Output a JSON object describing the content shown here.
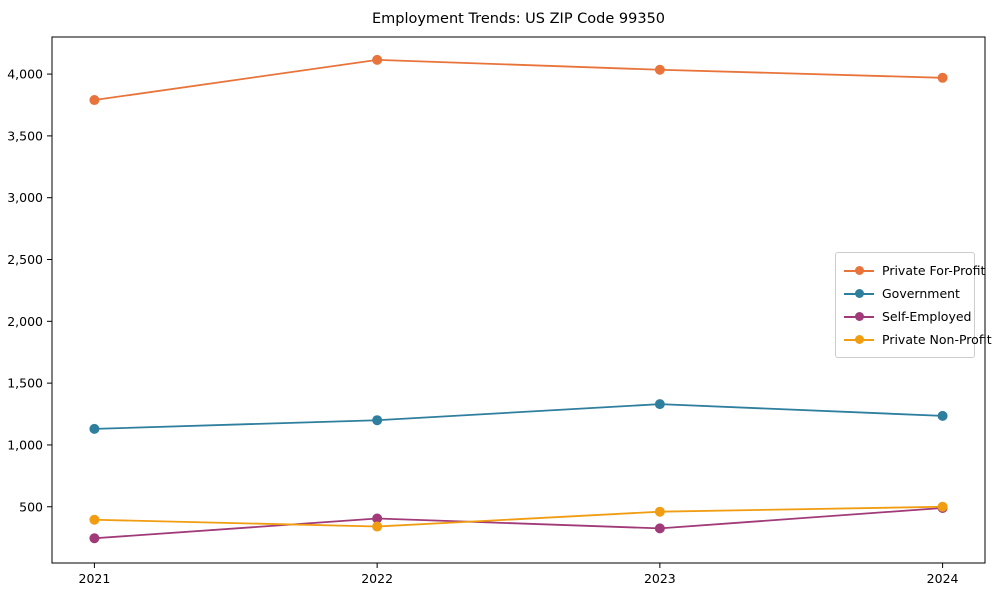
{
  "title": "Employment Trends: US ZIP Code 99350",
  "chart_data": {
    "type": "line",
    "title": "Employment Trends: US ZIP Code 99350",
    "xlabel": "",
    "ylabel": "",
    "x": [
      2021,
      2022,
      2023,
      2024
    ],
    "xtick_labels": [
      "2021",
      "2022",
      "2023",
      "2024"
    ],
    "yticks": [
      500,
      1000,
      1500,
      2000,
      2500,
      3000,
      3500,
      4000
    ],
    "ytick_labels": [
      "500",
      "1,000",
      "1,500",
      "2,000",
      "2,500",
      "3,000",
      "3,500",
      "4,000"
    ],
    "xlim": [
      2020.85,
      2024.15
    ],
    "ylim": [
      45,
      4300
    ],
    "grid": false,
    "legend_position": "center-right",
    "series": [
      {
        "name": "Private For-Profit",
        "color": "#e8743b",
        "values": [
          3790,
          4115,
          4035,
          3970
        ]
      },
      {
        "name": "Government",
        "color": "#2e7e9e",
        "values": [
          1130,
          1200,
          1330,
          1235
        ]
      },
      {
        "name": "Self-Employed",
        "color": "#a03a78",
        "values": [
          245,
          405,
          325,
          490
        ]
      },
      {
        "name": "Private Non-Profit",
        "color": "#f09d12",
        "values": [
          395,
          340,
          460,
          500
        ]
      }
    ]
  }
}
